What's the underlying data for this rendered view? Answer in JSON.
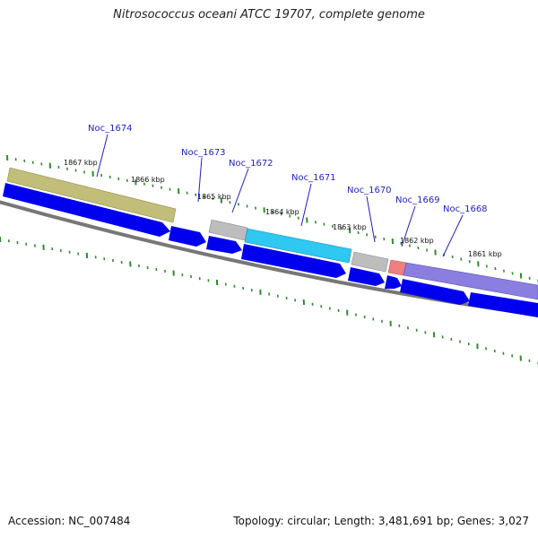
{
  "title": "Nitrosococcus oceani ATCC 19707, complete genome",
  "accession": "Accession: NC_007484",
  "summary": "Topology: circular; Length: 3,481,691 bp; Genes: 3,027",
  "colors": {
    "gene_arrow": "#0000ee",
    "backbone": "#777777",
    "ticks": "#2f8a2f",
    "label": "#1f1fbf",
    "Noc_1674": "#c2bd78",
    "Noc_1673": "#b8b8b8",
    "Noc_1672": "#2ec8f0",
    "Noc_1671": "#b8b8b8",
    "Noc_1670": "#ee8080",
    "Noc_1669": "#8a7ee0"
  },
  "kbp_labels": [
    "1867 kbp",
    "1866 kbp",
    "1865 kbp",
    "1864 kbp",
    "1863 kbp",
    "1862 kbp",
    "1861 kbp"
  ],
  "gene_labels": [
    "Noc_1674",
    "Noc_1673",
    "Noc_1672",
    "Noc_1671",
    "Noc_1670",
    "Noc_1669",
    "Noc_1668"
  ]
}
